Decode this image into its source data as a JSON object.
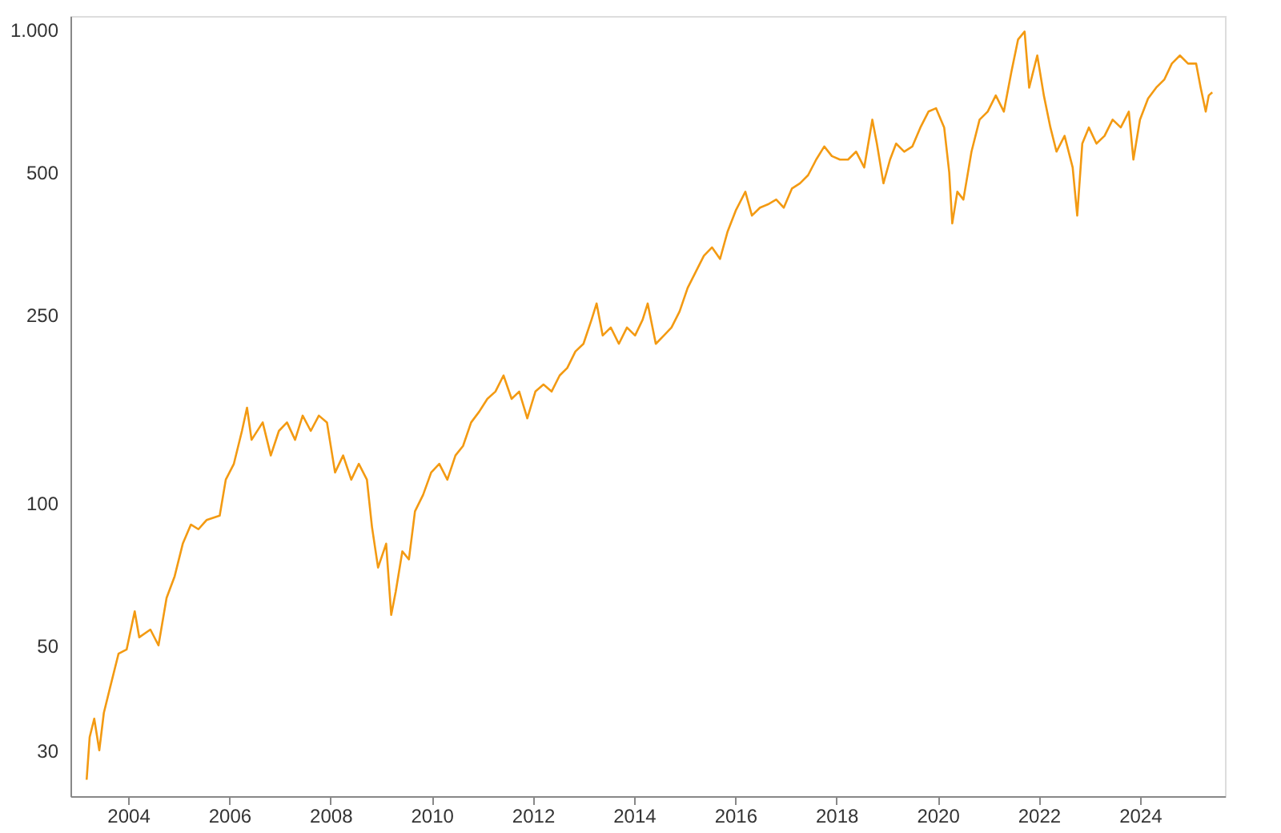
{
  "chart_data": {
    "type": "line",
    "log": "y",
    "grid": false,
    "marker": "none",
    "line_style": "solid",
    "xlim": [
      2002.86,
      2025.68
    ],
    "ylim": [
      24,
      1070
    ],
    "xticks": [
      2004,
      2006,
      2008,
      2010,
      2012,
      2014,
      2016,
      2018,
      2020,
      2022,
      2024
    ],
    "yticks": [
      30,
      50,
      100,
      250,
      500,
      {
        "value": 1000,
        "label": "1.000"
      }
    ],
    "series": [
      {
        "color": "#f39a12",
        "x": [
          2003.18,
          2003.24,
          2003.33,
          2003.43,
          2003.52,
          2003.65,
          2003.81,
          2003.97,
          2004.13,
          2004.22,
          2004.44,
          2004.6,
          2004.76,
          2004.92,
          2005.08,
          2005.24,
          2005.39,
          2005.55,
          2005.81,
          2005.93,
          2006.09,
          2006.25,
          2006.35,
          2006.44,
          2006.66,
          2006.82,
          2006.98,
          2007.14,
          2007.3,
          2007.45,
          2007.61,
          2007.77,
          2007.93,
          2008.09,
          2008.25,
          2008.41,
          2008.56,
          2008.72,
          2008.82,
          2008.94,
          2009.1,
          2009.2,
          2009.29,
          2009.42,
          2009.55,
          2009.67,
          2009.83,
          2009.99,
          2010.15,
          2010.31,
          2010.47,
          2010.62,
          2010.78,
          2010.94,
          2011.1,
          2011.26,
          2011.42,
          2011.58,
          2011.73,
          2011.89,
          2012.05,
          2012.21,
          2012.37,
          2012.53,
          2012.68,
          2012.84,
          2013.0,
          2013.16,
          2013.26,
          2013.38,
          2013.54,
          2013.7,
          2013.86,
          2014.02,
          2014.17,
          2014.27,
          2014.43,
          2014.59,
          2014.74,
          2014.9,
          2015.06,
          2015.22,
          2015.38,
          2015.54,
          2015.7,
          2015.85,
          2016.01,
          2016.2,
          2016.33,
          2016.49,
          2016.65,
          2016.81,
          2016.96,
          2017.12,
          2017.28,
          2017.44,
          2017.6,
          2017.76,
          2017.91,
          2018.07,
          2018.23,
          2018.39,
          2018.55,
          2018.71,
          2018.8,
          2018.93,
          2019.06,
          2019.18,
          2019.34,
          2019.5,
          2019.66,
          2019.82,
          2019.97,
          2020.13,
          2020.23,
          2020.29,
          2020.39,
          2020.51,
          2020.67,
          2020.83,
          2020.99,
          2021.15,
          2021.31,
          2021.46,
          2021.59,
          2021.72,
          2021.81,
          2021.97,
          2022.1,
          2022.23,
          2022.35,
          2022.51,
          2022.67,
          2022.76,
          2022.86,
          2022.99,
          2023.14,
          2023.3,
          2023.46,
          2023.62,
          2023.78,
          2023.87,
          2024.0,
          2024.16,
          2024.32,
          2024.48,
          2024.63,
          2024.79,
          2024.95,
          2025.11,
          2025.2,
          2025.3,
          2025.36,
          2025.43
        ],
        "values": [
          26,
          32,
          35,
          30,
          36,
          41,
          48,
          49,
          59,
          52,
          54,
          50,
          63,
          70,
          82,
          90,
          88,
          92,
          94,
          112,
          121,
          142,
          159,
          136,
          148,
          126,
          142,
          148,
          136,
          153,
          142,
          153,
          148,
          116,
          126,
          112,
          121,
          112,
          89,
          73,
          82,
          58,
          65,
          79,
          76,
          96,
          104,
          116,
          121,
          112,
          126,
          132,
          148,
          156,
          166,
          172,
          186,
          166,
          172,
          151,
          172,
          178,
          172,
          186,
          193,
          209,
          217,
          244,
          264,
          226,
          235,
          217,
          235,
          226,
          244,
          264,
          217,
          226,
          235,
          254,
          285,
          308,
          333,
          347,
          328,
          375,
          415,
          455,
          405,
          421,
          428,
          438,
          421,
          462,
          474,
          493,
          532,
          567,
          541,
          532,
          532,
          553,
          512,
          646,
          575,
          474,
          532,
          575,
          553,
          567,
          622,
          672,
          683,
          622,
          500,
          390,
          455,
          438,
          553,
          646,
          672,
          727,
          672,
          817,
          954,
          992,
          755,
          883,
          727,
          622,
          553,
          597,
          512,
          405,
          575,
          622,
          575,
          597,
          646,
          622,
          672,
          532,
          646,
          716,
          755,
          785,
          849,
          883,
          849,
          849,
          755,
          672,
          727,
          738
        ]
      }
    ]
  }
}
